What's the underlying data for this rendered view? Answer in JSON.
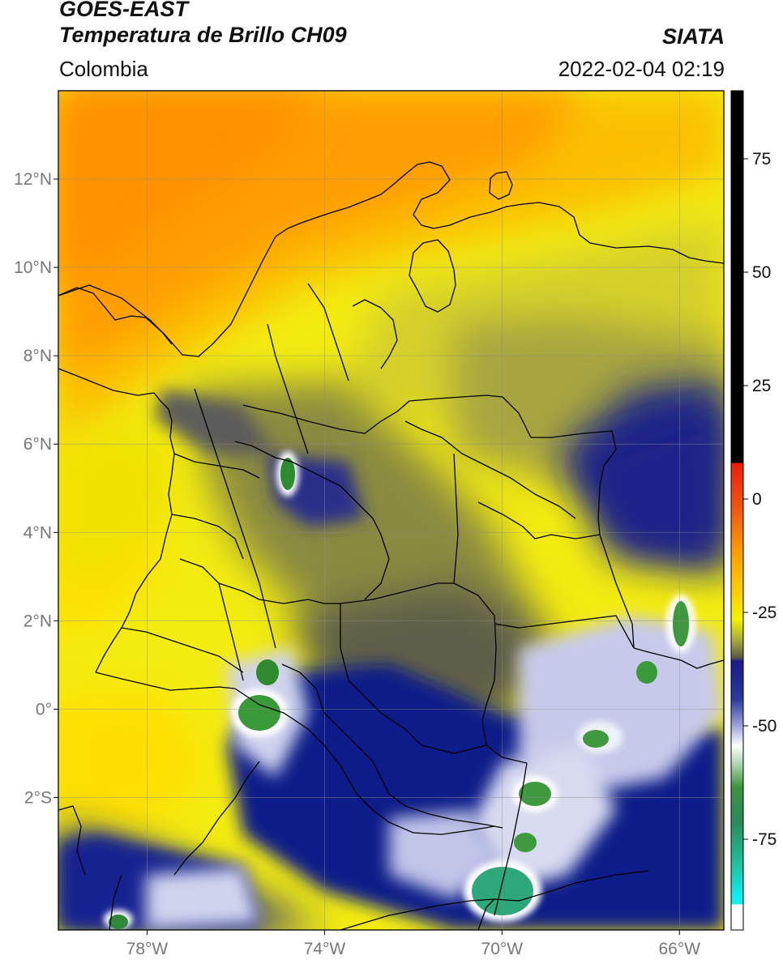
{
  "header": {
    "satellite": "GOES-EAST",
    "product": "Temperatura de Brillo CH09",
    "region": "Colombia",
    "organization": "SIATA",
    "datetime": "2022-02-04 02:19"
  },
  "map": {
    "lon_range": [
      -80,
      -65
    ],
    "lat_range": [
      -5,
      14
    ],
    "lon_ticks": [
      {
        "value": -78,
        "label": "78°W"
      },
      {
        "value": -74,
        "label": "74°W"
      },
      {
        "value": -70,
        "label": "70°W"
      },
      {
        "value": -66,
        "label": "66°W"
      }
    ],
    "lat_ticks": [
      {
        "value": 12,
        "label": "12°N"
      },
      {
        "value": 10,
        "label": "10°N"
      },
      {
        "value": 8,
        "label": "8°N"
      },
      {
        "value": 6,
        "label": "6°N"
      },
      {
        "value": 4,
        "label": "4°N"
      },
      {
        "value": 2,
        "label": "2°N"
      },
      {
        "value": 0,
        "label": "0°"
      },
      {
        "value": -2,
        "label": "2°S"
      }
    ]
  },
  "colorbar": {
    "range": [
      -95,
      90
    ],
    "ticks": [
      {
        "value": 75,
        "label": "75"
      },
      {
        "value": 50,
        "label": "50"
      },
      {
        "value": 25,
        "label": "25"
      },
      {
        "value": 0,
        "label": "0"
      },
      {
        "value": -25,
        "label": "-25"
      },
      {
        "value": -50,
        "label": "-50"
      },
      {
        "value": -75,
        "label": "-75"
      }
    ],
    "colors": {
      "black": "#000000",
      "red": "#e32b1a",
      "orange": "#ff9a00",
      "yellow": "#ffe600",
      "olive": "#5e5e3a",
      "navy": "#101a8a",
      "white": "#ffffff",
      "green": "#2d8a2d",
      "teal": "#1fc7a5",
      "cyan": "#10f0f0"
    }
  }
}
